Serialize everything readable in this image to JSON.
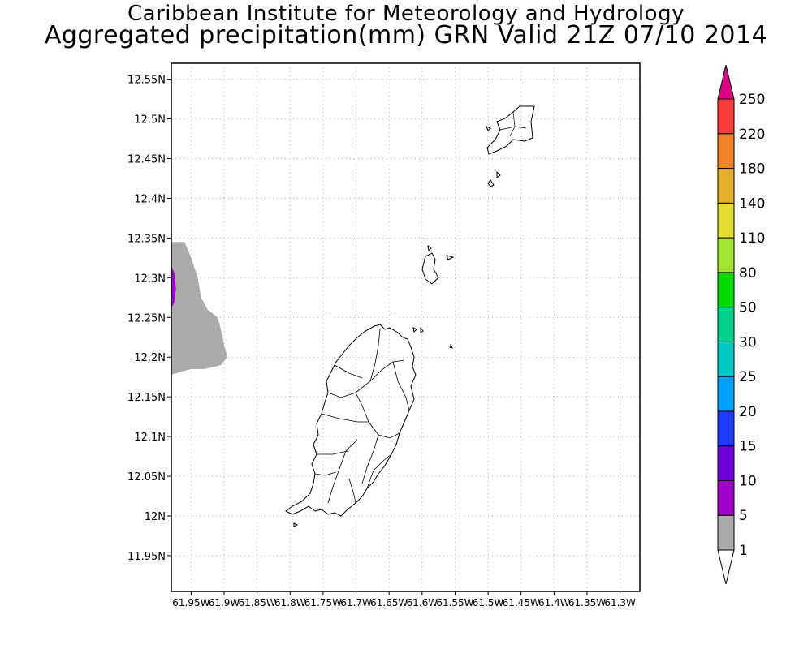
{
  "title": "Caribbean Institute for Meteorology and Hydrology",
  "subtitle": "Aggregated precipitation(mm) GRN Valid 21Z 07/10 2014",
  "map": {
    "lon_range": [
      -61.98,
      -61.27
    ],
    "lat_range": [
      11.905,
      12.57
    ],
    "lon_ticks": [
      -61.95,
      -61.9,
      -61.85,
      -61.8,
      -61.75,
      -61.7,
      -61.65,
      -61.6,
      -61.55,
      -61.5,
      -61.45,
      -61.4,
      -61.35,
      -61.3
    ],
    "lon_tick_labels": [
      "61.95W",
      "61.9W",
      "61.85W",
      "61.8W",
      "61.75W",
      "61.7W",
      "61.65W",
      "61.6W",
      "61.55W",
      "61.5W",
      "61.45W",
      "61.4W",
      "61.35W",
      "61.3W"
    ],
    "lat_ticks": [
      12.55,
      12.5,
      12.45,
      12.4,
      12.35,
      12.3,
      12.25,
      12.2,
      12.15,
      12.1,
      12.05,
      12.0,
      11.95
    ],
    "lat_tick_labels": [
      "12.55N",
      "12.5N",
      "12.45N",
      "12.4N",
      "12.35N",
      "12.3N",
      "12.25N",
      "12.2N",
      "12.15N",
      "12.1N",
      "12.05N",
      "12N",
      "11.95N"
    ],
    "grid": "dotted",
    "precip_areas": [
      {
        "range": "1-5",
        "color": "#aaaaaa",
        "outline": [
          [
            -61.98,
            12.345
          ],
          [
            -61.96,
            12.345
          ],
          [
            -61.95,
            12.325
          ],
          [
            -61.94,
            12.3
          ],
          [
            -61.935,
            12.275
          ],
          [
            -61.925,
            12.26
          ],
          [
            -61.91,
            12.25
          ],
          [
            -61.905,
            12.235
          ],
          [
            -61.9,
            12.215
          ],
          [
            -61.895,
            12.2
          ],
          [
            -61.905,
            12.19
          ],
          [
            -61.93,
            12.185
          ],
          [
            -61.95,
            12.185
          ],
          [
            -61.98,
            12.178
          ]
        ]
      },
      {
        "range": "5-10",
        "color": "#a000c8",
        "outline": [
          [
            -61.98,
            12.315
          ],
          [
            -61.975,
            12.305
          ],
          [
            -61.973,
            12.285
          ],
          [
            -61.976,
            12.268
          ],
          [
            -61.98,
            12.262
          ]
        ]
      }
    ]
  },
  "colorbar": {
    "colors": [
      "#ffffff",
      "#aaaaaa",
      "#a000c8",
      "#6e00dc",
      "#1e3cff",
      "#00a0ff",
      "#00c8c8",
      "#00d28c",
      "#00dc00",
      "#a0e632",
      "#e6dc32",
      "#e6af2d",
      "#f08228",
      "#fa3c3c",
      "#dc0082"
    ],
    "labels": [
      "1",
      "5",
      "10",
      "15",
      "20",
      "25",
      "30",
      "50",
      "80",
      "110",
      "140",
      "180",
      "220",
      "250"
    ]
  }
}
